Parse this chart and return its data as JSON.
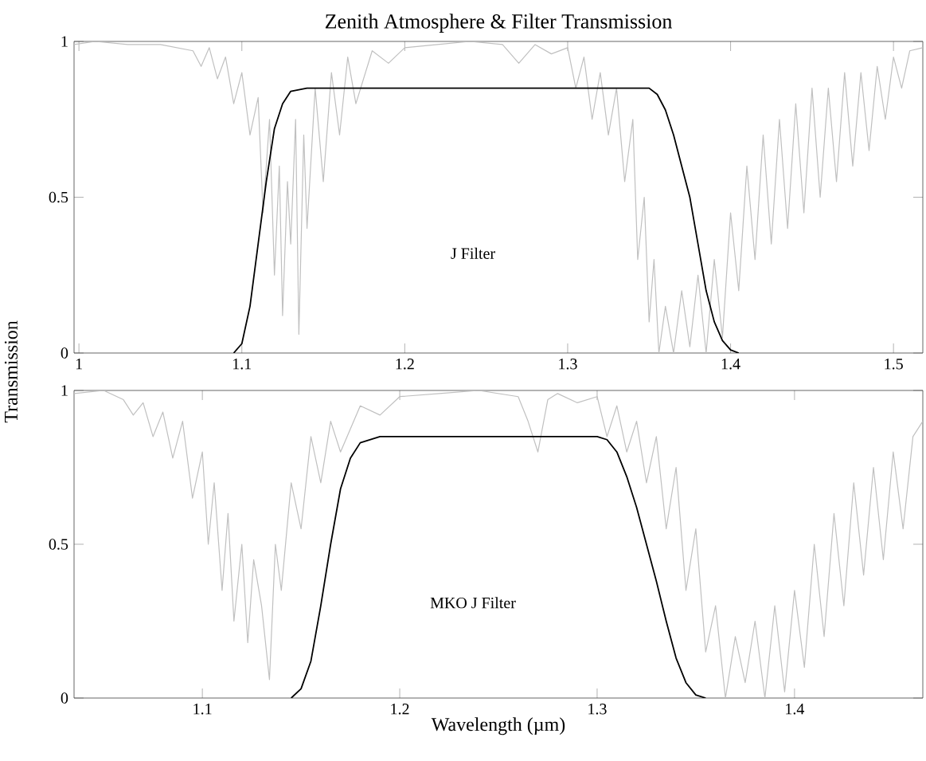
{
  "chart_data": [
    {
      "type": "line",
      "title": "Zenith Atmosphere & Filter Transmission",
      "ylabel": "Transmission",
      "annotations": [
        "J Filter"
      ],
      "xlim": [
        0.997,
        1.518
      ],
      "xticks": [
        1,
        1.1,
        1.2,
        1.3,
        1.4,
        1.5
      ],
      "ylim": [
        0,
        1
      ],
      "yticks": [
        0,
        0.5,
        1
      ],
      "marker": "none",
      "line_style": "solid",
      "series": [
        {
          "color": "#c0c0c0",
          "x": [
            0.997,
            1.01,
            1.03,
            1.05,
            1.07,
            1.075,
            1.08,
            1.085,
            1.09,
            1.095,
            1.1,
            1.105,
            1.11,
            1.113,
            1.117,
            1.12,
            1.123,
            1.125,
            1.128,
            1.13,
            1.133,
            1.135,
            1.138,
            1.14,
            1.145,
            1.15,
            1.155,
            1.16,
            1.165,
            1.17,
            1.18,
            1.19,
            1.2,
            1.22,
            1.24,
            1.26,
            1.27,
            1.28,
            1.29,
            1.3,
            1.305,
            1.31,
            1.315,
            1.32,
            1.325,
            1.33,
            1.335,
            1.34,
            1.343,
            1.347,
            1.35,
            1.353,
            1.356,
            1.36,
            1.365,
            1.37,
            1.375,
            1.38,
            1.385,
            1.39,
            1.395,
            1.4,
            1.405,
            1.41,
            1.415,
            1.42,
            1.425,
            1.43,
            1.435,
            1.44,
            1.445,
            1.45,
            1.455,
            1.46,
            1.465,
            1.47,
            1.475,
            1.48,
            1.485,
            1.49,
            1.495,
            1.5,
            1.505,
            1.51,
            1.518
          ],
          "values": [
            0.99,
            1.0,
            0.99,
            0.99,
            0.97,
            0.92,
            0.98,
            0.88,
            0.95,
            0.8,
            0.9,
            0.7,
            0.82,
            0.45,
            0.75,
            0.25,
            0.6,
            0.12,
            0.55,
            0.35,
            0.75,
            0.06,
            0.7,
            0.4,
            0.85,
            0.55,
            0.9,
            0.7,
            0.95,
            0.8,
            0.97,
            0.93,
            0.98,
            0.99,
            1.0,
            0.99,
            0.93,
            0.99,
            0.96,
            0.98,
            0.85,
            0.95,
            0.75,
            0.9,
            0.7,
            0.85,
            0.55,
            0.75,
            0.3,
            0.5,
            0.1,
            0.3,
            0.0,
            0.15,
            0.0,
            0.2,
            0.02,
            0.25,
            0.0,
            0.3,
            0.05,
            0.45,
            0.2,
            0.6,
            0.3,
            0.7,
            0.35,
            0.75,
            0.4,
            0.8,
            0.45,
            0.85,
            0.5,
            0.85,
            0.55,
            0.9,
            0.6,
            0.9,
            0.65,
            0.92,
            0.75,
            0.95,
            0.85,
            0.97,
            0.98
          ]
        },
        {
          "color": "#000000",
          "x": [
            1.095,
            1.1,
            1.105,
            1.11,
            1.115,
            1.12,
            1.125,
            1.13,
            1.14,
            1.35,
            1.355,
            1.36,
            1.365,
            1.37,
            1.375,
            1.38,
            1.385,
            1.39,
            1.395,
            1.4,
            1.405
          ],
          "values": [
            0,
            0.03,
            0.15,
            0.35,
            0.55,
            0.72,
            0.8,
            0.84,
            0.85,
            0.85,
            0.83,
            0.78,
            0.7,
            0.6,
            0.5,
            0.35,
            0.2,
            0.1,
            0.04,
            0.01,
            0
          ]
        }
      ]
    },
    {
      "type": "line",
      "xlabel": "Wavelength (µm)",
      "annotations": [
        "MKO J Filter"
      ],
      "xlim": [
        1.035,
        1.465
      ],
      "xticks": [
        1.1,
        1.2,
        1.3,
        1.4
      ],
      "ylim": [
        0,
        1
      ],
      "yticks": [
        0,
        0.5,
        1
      ],
      "marker": "none",
      "line_style": "solid",
      "series": [
        {
          "color": "#c0c0c0",
          "x": [
            1.035,
            1.05,
            1.06,
            1.065,
            1.07,
            1.075,
            1.08,
            1.085,
            1.09,
            1.095,
            1.1,
            1.103,
            1.106,
            1.11,
            1.113,
            1.116,
            1.12,
            1.123,
            1.126,
            1.13,
            1.134,
            1.137,
            1.14,
            1.145,
            1.15,
            1.155,
            1.16,
            1.165,
            1.17,
            1.18,
            1.19,
            1.2,
            1.22,
            1.24,
            1.26,
            1.265,
            1.27,
            1.275,
            1.28,
            1.29,
            1.3,
            1.305,
            1.31,
            1.315,
            1.32,
            1.325,
            1.33,
            1.335,
            1.34,
            1.345,
            1.35,
            1.355,
            1.36,
            1.365,
            1.37,
            1.375,
            1.38,
            1.385,
            1.39,
            1.395,
            1.4,
            1.405,
            1.41,
            1.415,
            1.42,
            1.425,
            1.43,
            1.435,
            1.44,
            1.445,
            1.45,
            1.455,
            1.46,
            1.465
          ],
          "values": [
            0.99,
            1.0,
            0.97,
            0.92,
            0.96,
            0.85,
            0.93,
            0.78,
            0.9,
            0.65,
            0.8,
            0.5,
            0.7,
            0.35,
            0.6,
            0.25,
            0.5,
            0.18,
            0.45,
            0.3,
            0.06,
            0.5,
            0.35,
            0.7,
            0.55,
            0.85,
            0.7,
            0.9,
            0.8,
            0.95,
            0.92,
            0.98,
            0.99,
            1.0,
            0.98,
            0.9,
            0.8,
            0.97,
            0.99,
            0.96,
            0.98,
            0.85,
            0.95,
            0.8,
            0.9,
            0.7,
            0.85,
            0.55,
            0.75,
            0.35,
            0.55,
            0.15,
            0.3,
            0.0,
            0.2,
            0.05,
            0.25,
            0.0,
            0.3,
            0.02,
            0.35,
            0.1,
            0.5,
            0.2,
            0.6,
            0.3,
            0.7,
            0.4,
            0.75,
            0.45,
            0.8,
            0.55,
            0.85,
            0.9
          ]
        },
        {
          "color": "#000000",
          "x": [
            1.145,
            1.15,
            1.155,
            1.16,
            1.165,
            1.17,
            1.175,
            1.18,
            1.19,
            1.3,
            1.305,
            1.31,
            1.315,
            1.32,
            1.325,
            1.33,
            1.335,
            1.34,
            1.345,
            1.35,
            1.355
          ],
          "values": [
            0,
            0.03,
            0.12,
            0.3,
            0.5,
            0.68,
            0.78,
            0.83,
            0.85,
            0.85,
            0.84,
            0.8,
            0.72,
            0.62,
            0.5,
            0.38,
            0.25,
            0.13,
            0.05,
            0.01,
            0
          ]
        }
      ]
    }
  ]
}
